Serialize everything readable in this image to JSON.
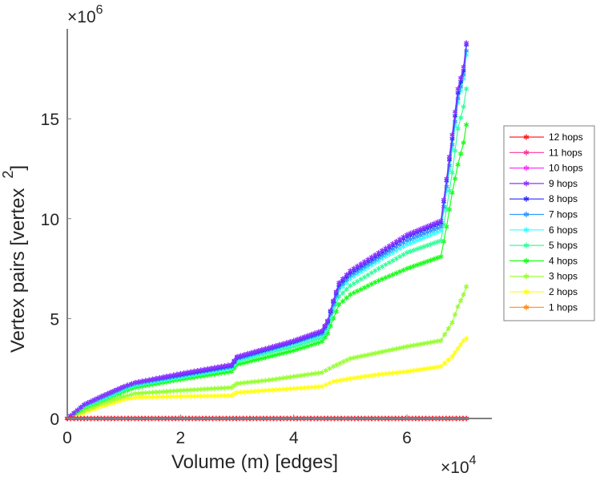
{
  "chart_data": {
    "type": "line",
    "title": "",
    "xlabel": "Volume (m) [edges]",
    "ylabel": "Vertex pairs [vertex",
    "ylabel_superscript": "2",
    "ylabel_close": "]",
    "x_exponent_label": "×10",
    "x_exponent": "4",
    "y_exponent_label": "×10",
    "y_exponent": "6",
    "xlim": [
      0,
      7.5
    ],
    "ylim": [
      0,
      19.5
    ],
    "xticks": [
      0,
      2,
      4,
      6
    ],
    "xtick_labels": [
      "0",
      "2",
      "4",
      "6"
    ],
    "yticks": [
      0,
      5,
      10,
      15
    ],
    "ytick_labels": [
      "0",
      "5",
      "10",
      "15"
    ],
    "grid": false,
    "legend_position": "right",
    "marker": "*",
    "series": [
      {
        "name": "12 hops",
        "color": "#ff2020",
        "x": [
          0,
          7.05
        ],
        "y": [
          0,
          0
        ]
      },
      {
        "name": "11 hops",
        "color": "#ff3399",
        "x": [
          0,
          7.05
        ],
        "y": [
          0,
          0
        ]
      },
      {
        "name": "10 hops",
        "color": "#ff33ff",
        "x": [
          0,
          7.05
        ],
        "y": [
          0,
          0
        ]
      },
      {
        "name": "9 hops",
        "color": "#8f33ff",
        "x": [
          0,
          0.3,
          0.6,
          1.0,
          1.2,
          2.0,
          2.9,
          3.0,
          3.5,
          4.0,
          4.5,
          4.6,
          4.7,
          4.8,
          5.0,
          5.5,
          6.0,
          6.6,
          6.7,
          6.8,
          6.9,
          7.0,
          7.05
        ],
        "y": [
          0,
          0.7,
          1.1,
          1.6,
          1.8,
          2.25,
          2.7,
          3.1,
          3.5,
          3.9,
          4.4,
          4.9,
          5.9,
          6.8,
          7.4,
          8.3,
          9.2,
          9.9,
          12.0,
          14.2,
          16.5,
          17.6,
          18.8
        ]
      },
      {
        "name": "8 hops",
        "color": "#2a2aff",
        "x": [
          0,
          0.3,
          0.6,
          1.0,
          1.2,
          2.0,
          2.9,
          3.0,
          3.5,
          4.0,
          4.5,
          4.6,
          4.7,
          4.8,
          5.0,
          5.5,
          6.0,
          6.6,
          6.7,
          6.8,
          6.9,
          7.0,
          7.05
        ],
        "y": [
          0,
          0.7,
          1.1,
          1.6,
          1.8,
          2.2,
          2.65,
          3.05,
          3.45,
          3.85,
          4.35,
          4.85,
          5.85,
          6.7,
          7.3,
          8.2,
          9.1,
          9.8,
          11.9,
          14.0,
          16.3,
          17.4,
          18.7
        ]
      },
      {
        "name": "7 hops",
        "color": "#3399ff",
        "x": [
          0,
          0.3,
          0.6,
          1.0,
          1.2,
          2.0,
          2.9,
          3.0,
          3.5,
          4.0,
          4.5,
          4.6,
          4.7,
          4.8,
          5.0,
          5.5,
          6.0,
          6.6,
          6.7,
          6.8,
          6.9,
          7.0,
          7.05
        ],
        "y": [
          0,
          0.68,
          1.05,
          1.55,
          1.75,
          2.15,
          2.6,
          3.0,
          3.4,
          3.8,
          4.25,
          4.75,
          5.7,
          6.55,
          7.15,
          8.05,
          8.9,
          9.6,
          11.6,
          13.7,
          16.0,
          17.2,
          18.4
        ]
      },
      {
        "name": "6 hops",
        "color": "#33ffff",
        "x": [
          0,
          0.3,
          0.6,
          1.0,
          1.2,
          2.0,
          2.9,
          3.0,
          3.5,
          4.0,
          4.5,
          4.6,
          4.7,
          4.8,
          5.0,
          5.5,
          6.0,
          6.6,
          6.7,
          6.8,
          6.9,
          7.0,
          7.05
        ],
        "y": [
          0,
          0.65,
          1.0,
          1.5,
          1.7,
          2.1,
          2.55,
          2.95,
          3.35,
          3.75,
          4.2,
          4.65,
          5.6,
          6.4,
          7.0,
          7.9,
          8.7,
          9.4,
          11.4,
          13.5,
          15.8,
          17.0,
          18.2
        ]
      },
      {
        "name": "5 hops",
        "color": "#33ff99",
        "x": [
          0,
          0.3,
          0.6,
          1.0,
          1.2,
          2.0,
          2.9,
          3.0,
          3.5,
          4.0,
          4.5,
          4.6,
          4.7,
          4.8,
          5.0,
          5.5,
          6.0,
          6.6,
          6.7,
          6.8,
          6.9,
          7.0,
          7.05
        ],
        "y": [
          0,
          0.62,
          0.95,
          1.45,
          1.65,
          2.05,
          2.5,
          2.85,
          3.25,
          3.6,
          4.05,
          4.5,
          5.35,
          6.1,
          6.65,
          7.5,
          8.3,
          8.9,
          10.5,
          12.3,
          14.5,
          15.6,
          16.5
        ]
      },
      {
        "name": "4 hops",
        "color": "#19ff19",
        "x": [
          0,
          0.3,
          0.6,
          1.0,
          1.2,
          2.0,
          2.9,
          3.0,
          3.5,
          4.0,
          4.5,
          4.6,
          4.7,
          4.8,
          5.0,
          5.5,
          6.0,
          6.6,
          6.7,
          6.8,
          6.9,
          7.0,
          7.05
        ],
        "y": [
          0,
          0.55,
          0.9,
          1.35,
          1.55,
          1.95,
          2.35,
          2.7,
          3.05,
          3.4,
          3.85,
          4.25,
          5.0,
          5.7,
          6.2,
          6.9,
          7.5,
          8.1,
          9.6,
          11.3,
          12.7,
          13.8,
          14.7
        ]
      },
      {
        "name": "3 hops",
        "color": "#99ff33",
        "x": [
          0,
          0.3,
          0.6,
          1.0,
          1.2,
          2.0,
          2.9,
          3.0,
          3.5,
          4.0,
          4.5,
          4.7,
          5.0,
          5.5,
          6.0,
          6.6,
          6.8,
          6.9,
          7.0,
          7.05
        ],
        "y": [
          0,
          0.4,
          0.75,
          1.1,
          1.25,
          1.4,
          1.55,
          1.75,
          1.9,
          2.1,
          2.3,
          2.6,
          3.0,
          3.3,
          3.6,
          3.9,
          4.8,
          5.6,
          6.2,
          6.6
        ]
      },
      {
        "name": "2 hops",
        "color": "#ffff19",
        "x": [
          0,
          0.3,
          0.6,
          1.0,
          1.2,
          2.0,
          2.9,
          3.0,
          3.5,
          4.0,
          4.5,
          4.7,
          5.0,
          5.5,
          6.0,
          6.6,
          6.8,
          6.9,
          7.0,
          7.05
        ],
        "y": [
          0,
          0.3,
          0.6,
          0.95,
          1.05,
          1.1,
          1.15,
          1.3,
          1.4,
          1.5,
          1.6,
          1.85,
          2.0,
          2.2,
          2.35,
          2.6,
          3.1,
          3.5,
          3.9,
          4.0
        ]
      },
      {
        "name": "1 hops",
        "color": "#ff8c1a",
        "x": [
          0,
          7.05
        ],
        "y": [
          0,
          0
        ]
      }
    ]
  }
}
